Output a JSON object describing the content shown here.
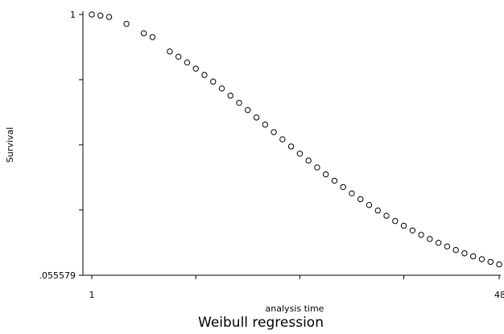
{
  "chart_data": {
    "type": "scatter",
    "title": "Weibull regression",
    "xlabel": "analysis time",
    "ylabel": "Survival",
    "xlim": [
      1,
      48
    ],
    "ylim": [
      0.055579,
      1
    ],
    "x_tick_labels": [
      {
        "value": 1,
        "label": "1"
      },
      {
        "value": 48,
        "label": "48"
      }
    ],
    "x_unlabeled_ticks": [
      13,
      25,
      37
    ],
    "y_tick_labels": [
      {
        "value": 1,
        "label": "1"
      },
      {
        "value": 0.055579,
        "label": ".055579"
      }
    ],
    "y_unlabeled_ticks": [
      0.292,
      0.528,
      0.764
    ],
    "marker": "hollow-circle",
    "grid": false,
    "series": [
      {
        "x": [
          1,
          2,
          3,
          5,
          7,
          8,
          10,
          11,
          12,
          13,
          14,
          15,
          16,
          17,
          18,
          19,
          20,
          21,
          22,
          23,
          24,
          25,
          26,
          27,
          28,
          29,
          30,
          31,
          32,
          33,
          34,
          35,
          36,
          37,
          38,
          39,
          40,
          41,
          42,
          43,
          44,
          45,
          46,
          47,
          48
        ],
        "y": [
          1.0,
          0.996,
          0.991,
          0.966,
          0.932,
          0.918,
          0.866,
          0.847,
          0.826,
          0.804,
          0.781,
          0.757,
          0.732,
          0.706,
          0.68,
          0.654,
          0.627,
          0.601,
          0.574,
          0.548,
          0.522,
          0.496,
          0.471,
          0.446,
          0.421,
          0.398,
          0.375,
          0.352,
          0.331,
          0.31,
          0.29,
          0.271,
          0.252,
          0.235,
          0.218,
          0.202,
          0.187,
          0.173,
          0.16,
          0.147,
          0.135,
          0.124,
          0.114,
          0.104,
          0.095
        ]
      }
    ]
  }
}
